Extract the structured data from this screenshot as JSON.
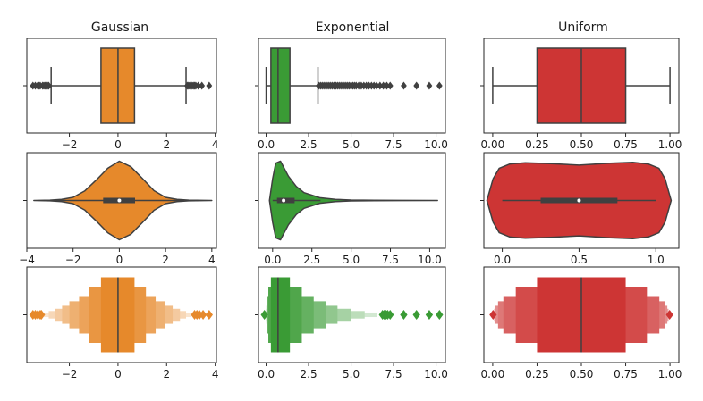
{
  "chart_data": {
    "type": "box-violin-boxen grid",
    "column_titles": [
      "Gaussian",
      "Exponential",
      "Uniform"
    ],
    "row_types": [
      "box",
      "violin",
      "boxen"
    ],
    "colors": {
      "Gaussian": "#e6892b",
      "Exponential": "#3a9b35",
      "Uniform": "#cd3534",
      "line": "#404040"
    },
    "axes": [
      {
        "row": 0,
        "col": 0,
        "kind": "box",
        "dist": "Gaussian",
        "xlim": [
          -3.75,
          4.05
        ],
        "ticks": [
          -2,
          0,
          2,
          4
        ],
        "tick_labels": [
          "−2",
          "0",
          "2",
          "4"
        ],
        "q1": -0.7,
        "median": 0.0,
        "q3": 0.68,
        "whisker_low": -2.75,
        "whisker_high": 2.8,
        "outliers": [
          -3.5,
          -3.4,
          -3.3,
          -3.25,
          -3.2,
          -3.1,
          -3.05,
          -3.0,
          -2.95,
          -2.9,
          -2.85,
          2.85,
          2.9,
          2.95,
          3.0,
          3.05,
          3.1,
          3.15,
          3.2,
          3.3,
          3.45,
          3.75
        ]
      },
      {
        "row": 0,
        "col": 1,
        "kind": "box",
        "dist": "Exponential",
        "xlim": [
          -0.45,
          10.55
        ],
        "ticks": [
          0,
          2.5,
          5,
          7.5,
          10
        ],
        "tick_labels": [
          "0.0",
          "2.5",
          "5.0",
          "7.5",
          "10.0"
        ],
        "q1": 0.28,
        "median": 0.7,
        "q3": 1.4,
        "whisker_low": 0.0,
        "whisker_high": 3.05,
        "outliers": [
          3.1,
          3.2,
          3.3,
          3.4,
          3.5,
          3.6,
          3.7,
          3.8,
          3.9,
          4.0,
          4.1,
          4.2,
          4.3,
          4.4,
          4.5,
          4.6,
          4.7,
          4.8,
          4.9,
          5.0,
          5.1,
          5.2,
          5.3,
          5.45,
          5.6,
          5.75,
          5.9,
          6.05,
          6.2,
          6.35,
          6.5,
          6.7,
          6.9,
          7.1,
          7.3,
          8.1,
          8.85,
          9.6,
          10.2
        ]
      },
      {
        "row": 0,
        "col": 2,
        "kind": "box",
        "dist": "Uniform",
        "xlim": [
          -0.05,
          1.05
        ],
        "ticks": [
          0,
          0.25,
          0.5,
          0.75,
          1.0
        ],
        "tick_labels": [
          "0.00",
          "0.25",
          "0.50",
          "0.75",
          "1.00"
        ],
        "q1": 0.25,
        "median": 0.5,
        "q3": 0.75,
        "whisker_low": 0.0,
        "whisker_high": 1.0,
        "outliers": []
      },
      {
        "row": 1,
        "col": 0,
        "kind": "violin",
        "dist": "Gaussian",
        "xlim": [
          -4.0,
          4.2
        ],
        "ticks": [
          -4,
          -2,
          0,
          2,
          4
        ],
        "tick_labels": [
          "−4",
          "−2",
          "0",
          "2",
          "4"
        ],
        "q1": -0.7,
        "median": 0.0,
        "q3": 0.68,
        "whisker_low": -2.75,
        "whisker_high": 2.8,
        "extent": [
          -3.7,
          4.0
        ],
        "density": [
          [
            -3.7,
            0.0
          ],
          [
            -3.0,
            0.01
          ],
          [
            -2.5,
            0.03
          ],
          [
            -2.0,
            0.08
          ],
          [
            -1.5,
            0.24
          ],
          [
            -1.0,
            0.52
          ],
          [
            -0.5,
            0.82
          ],
          [
            0.0,
            1.0
          ],
          [
            0.5,
            0.86
          ],
          [
            1.0,
            0.56
          ],
          [
            1.5,
            0.25
          ],
          [
            2.0,
            0.08
          ],
          [
            2.5,
            0.03
          ],
          [
            3.0,
            0.01
          ],
          [
            4.0,
            0.0
          ]
        ]
      },
      {
        "row": 1,
        "col": 1,
        "kind": "violin",
        "dist": "Exponential",
        "xlim": [
          -0.9,
          11.0
        ],
        "ticks": [
          0,
          2.5,
          5,
          7.5,
          10
        ],
        "tick_labels": [
          "0.0",
          "2.5",
          "5.0",
          "7.5",
          "10.0"
        ],
        "q1": 0.28,
        "median": 0.7,
        "q3": 1.4,
        "whisker_low": 0.0,
        "whisker_high": 3.05,
        "extent": [
          -0.2,
          10.5
        ],
        "density": [
          [
            -0.2,
            0.0
          ],
          [
            0.0,
            0.55
          ],
          [
            0.2,
            0.95
          ],
          [
            0.5,
            1.0
          ],
          [
            1.0,
            0.62
          ],
          [
            1.5,
            0.36
          ],
          [
            2.0,
            0.2
          ],
          [
            3.0,
            0.07
          ],
          [
            4.0,
            0.03
          ],
          [
            5.0,
            0.012
          ],
          [
            6.5,
            0.005
          ],
          [
            8.0,
            0.002
          ],
          [
            10.5,
            0.0
          ]
        ]
      },
      {
        "row": 1,
        "col": 2,
        "kind": "violin",
        "dist": "Uniform",
        "xlim": [
          -0.12,
          1.15
        ],
        "ticks": [
          0,
          0.5,
          1.0
        ],
        "tick_labels": [
          "0.0",
          "0.5",
          "1.0"
        ],
        "q1": 0.25,
        "median": 0.5,
        "q3": 0.75,
        "whisker_low": 0.0,
        "whisker_high": 1.0,
        "extent": [
          -0.1,
          1.1
        ],
        "density": [
          [
            -0.1,
            0.0
          ],
          [
            -0.06,
            0.55
          ],
          [
            -0.02,
            0.82
          ],
          [
            0.05,
            0.93
          ],
          [
            0.15,
            0.96
          ],
          [
            0.3,
            0.94
          ],
          [
            0.5,
            0.9
          ],
          [
            0.7,
            0.95
          ],
          [
            0.85,
            0.97
          ],
          [
            0.95,
            0.93
          ],
          [
            1.02,
            0.82
          ],
          [
            1.06,
            0.55
          ],
          [
            1.1,
            0.0
          ]
        ]
      },
      {
        "row": 2,
        "col": 0,
        "kind": "boxen",
        "dist": "Gaussian",
        "xlim": [
          -3.75,
          4.05
        ],
        "ticks": [
          -2,
          0,
          2,
          4
        ],
        "tick_labels": [
          "−2",
          "0",
          "2",
          "4"
        ],
        "median": 0.0,
        "boxes": [
          [
            -0.7,
            0.68,
            1.0
          ],
          [
            -1.2,
            1.15,
            0.75
          ],
          [
            -1.6,
            1.55,
            0.5
          ],
          [
            -2.0,
            1.95,
            0.36
          ],
          [
            -2.3,
            2.25,
            0.24
          ],
          [
            -2.6,
            2.55,
            0.16
          ],
          [
            -2.85,
            2.8,
            0.1
          ],
          [
            -3.05,
            3.0,
            0.06
          ]
        ],
        "outliers": [
          -3.5,
          -3.4,
          -3.3,
          -3.2,
          -3.15,
          3.15,
          3.25,
          3.35,
          3.5,
          3.75
        ]
      },
      {
        "row": 2,
        "col": 1,
        "kind": "boxen",
        "dist": "Exponential",
        "xlim": [
          -0.45,
          10.55
        ],
        "ticks": [
          0,
          2.5,
          5,
          7.5,
          10
        ],
        "tick_labels": [
          "0.0",
          "2.5",
          "5.0",
          "7.5",
          "10.0"
        ],
        "median": 0.7,
        "boxes": [
          [
            0.28,
            1.4,
            1.0
          ],
          [
            0.13,
            2.1,
            0.75
          ],
          [
            0.06,
            2.8,
            0.5
          ],
          [
            0.03,
            3.5,
            0.36
          ],
          [
            0.015,
            4.2,
            0.24
          ],
          [
            0.008,
            5.0,
            0.16
          ],
          [
            0.004,
            5.8,
            0.1
          ],
          [
            0.002,
            6.5,
            0.06
          ]
        ],
        "outliers": [
          -0.1,
          6.85,
          6.95,
          7.05,
          7.15,
          7.3,
          8.1,
          8.85,
          9.6,
          10.2
        ]
      },
      {
        "row": 2,
        "col": 2,
        "kind": "boxen",
        "dist": "Uniform",
        "xlim": [
          -0.05,
          1.05
        ],
        "ticks": [
          0,
          0.25,
          0.5,
          0.75,
          1.0
        ],
        "tick_labels": [
          "0.00",
          "0.25",
          "0.50",
          "0.75",
          "1.00"
        ],
        "median": 0.5,
        "boxes": [
          [
            0.25,
            0.75,
            1.0
          ],
          [
            0.13,
            0.87,
            0.75
          ],
          [
            0.06,
            0.94,
            0.5
          ],
          [
            0.03,
            0.97,
            0.36
          ],
          [
            0.015,
            0.985,
            0.24
          ],
          [
            0.008,
            0.992,
            0.16
          ]
        ],
        "outliers": [
          0.002,
          0.998
        ]
      }
    ]
  }
}
